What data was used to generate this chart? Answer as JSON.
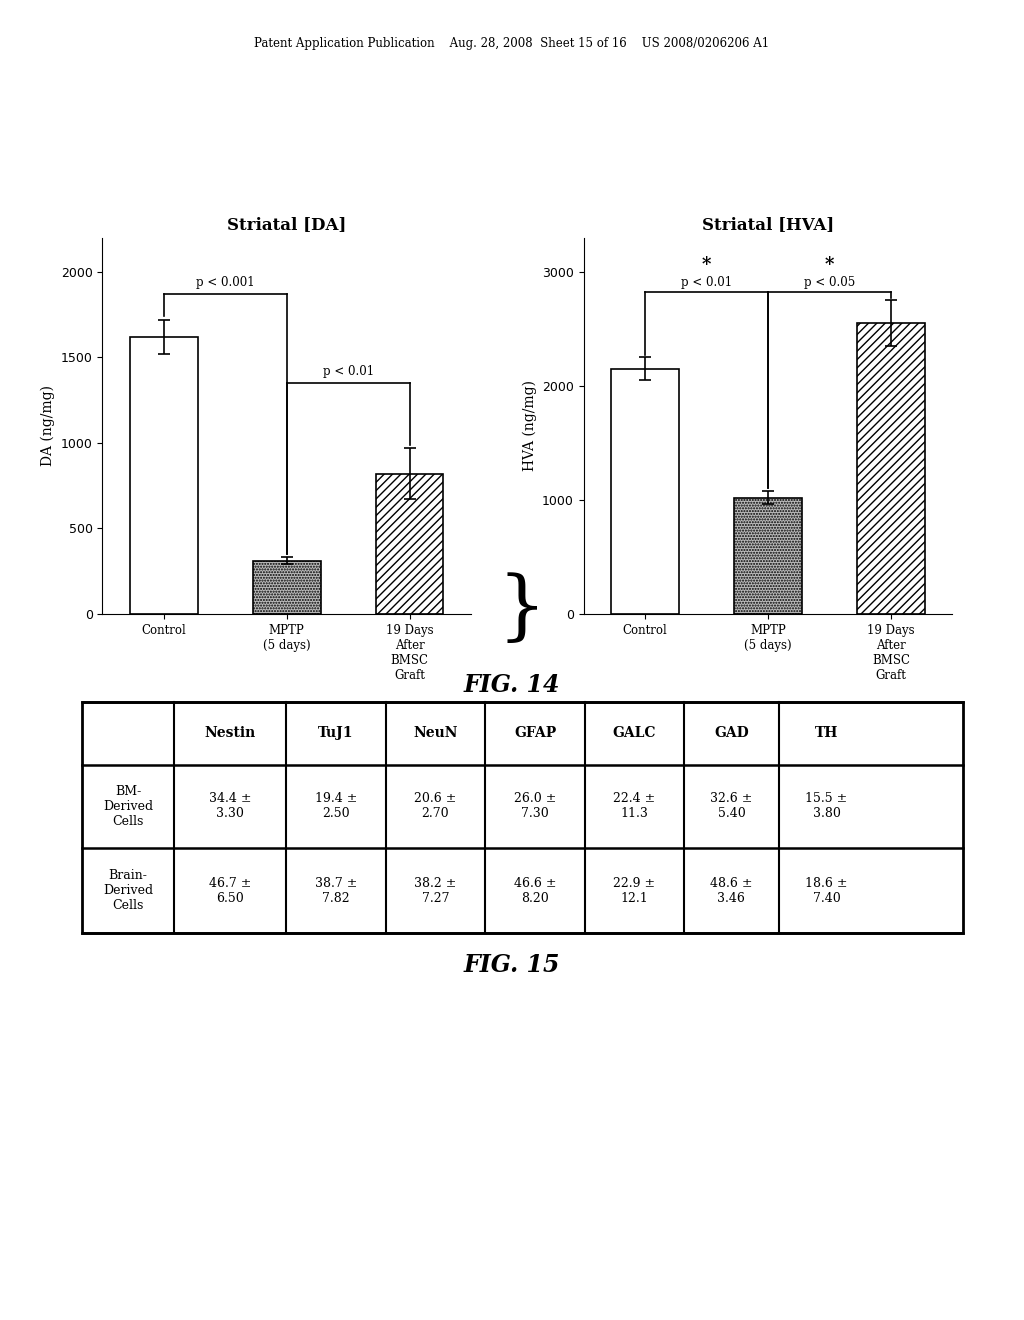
{
  "header_text": "Patent Application Publication    Aug. 28, 2008  Sheet 15 of 16    US 2008/0206206 A1",
  "fig14_label": "FIG. 14",
  "fig15_label": "FIG. 15",
  "da_title": "Striatal [DA]",
  "hva_title": "Striatal [HVA]",
  "da_ylabel": "DA (ng/mg)",
  "hva_ylabel": "HVA (ng/mg)",
  "da_categories": [
    "Control",
    "MPTP\n(5 days)",
    "19 Days\nAfter\nBMSC\nGraft"
  ],
  "hva_categories": [
    "Control",
    "MPTP\n(5 days)",
    "19 Days\nAfter\nBMSC\nGraft"
  ],
  "da_values": [
    1620,
    310,
    820
  ],
  "da_errors": [
    100,
    20,
    150
  ],
  "hva_values": [
    2150,
    1020,
    2550
  ],
  "hva_errors": [
    100,
    60,
    200
  ],
  "da_ylim": [
    0,
    2200
  ],
  "hva_ylim": [
    0,
    3300
  ],
  "da_yticks": [
    0,
    500,
    1000,
    1500,
    2000
  ],
  "hva_yticks": [
    0,
    1000,
    2000,
    3000
  ],
  "table_headers": [
    "",
    "Nestin",
    "TuJ1",
    "NeuN",
    "GFAP",
    "GALC",
    "GAD",
    "TH"
  ],
  "table_rows": [
    [
      "BM-\nDerived\nCells",
      "34.4 ±\n3.30",
      "19.4 ±\n2.50",
      "20.6 ±\n2.70",
      "26.0 ±\n7.30",
      "22.4 ±\n11.3",
      "32.6 ±\n5.40",
      "15.5 ±\n3.80"
    ],
    [
      "Brain-\nDerived\nCells",
      "46.7 ±\n6.50",
      "38.7 ±\n7.82",
      "38.2 ±\n7.27",
      "46.6 ±\n8.20",
      "22.9 ±\n12.1",
      "48.6 ±\n3.46",
      "18.6 ±\n7.40"
    ]
  ],
  "background_color": "#ffffff",
  "text_color": "#000000"
}
